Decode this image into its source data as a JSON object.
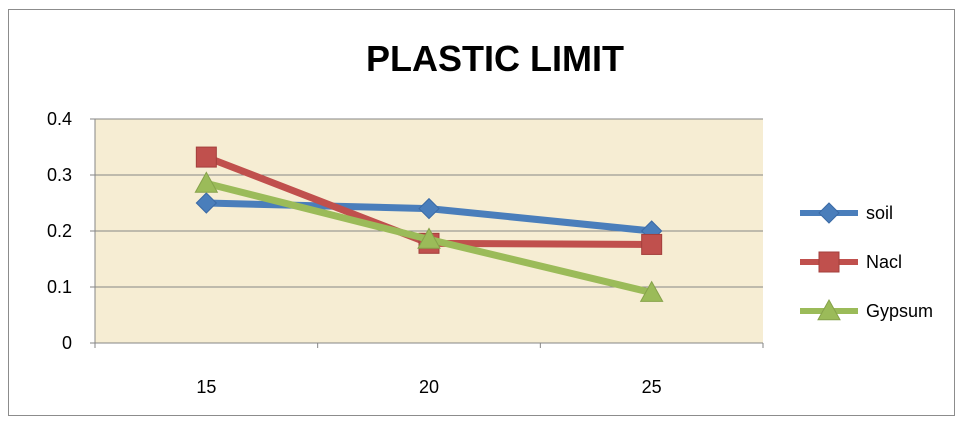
{
  "chart_data": {
    "type": "line",
    "title": "PLASTIC LIMIT",
    "xlabel": "",
    "ylabel": "",
    "categories": [
      "15",
      "20",
      "25"
    ],
    "ylim": [
      0,
      0.4
    ],
    "yticks": [
      "0",
      "0.1",
      "0.2",
      "0.3",
      "0.4"
    ],
    "grid": true,
    "legend_position": "right",
    "plot_background": "#f6edd3",
    "series": [
      {
        "name": "soil",
        "values": [
          0.25,
          0.24,
          0.2
        ],
        "color": "#4a7ebb",
        "marker": "diamond"
      },
      {
        "name": "Nacl",
        "values": [
          0.332,
          0.178,
          0.176
        ],
        "color": "#c0504d",
        "marker": "square"
      },
      {
        "name": "Gypsum",
        "values": [
          0.285,
          0.185,
          0.09
        ],
        "color": "#9bbb59",
        "marker": "triangle"
      }
    ]
  }
}
